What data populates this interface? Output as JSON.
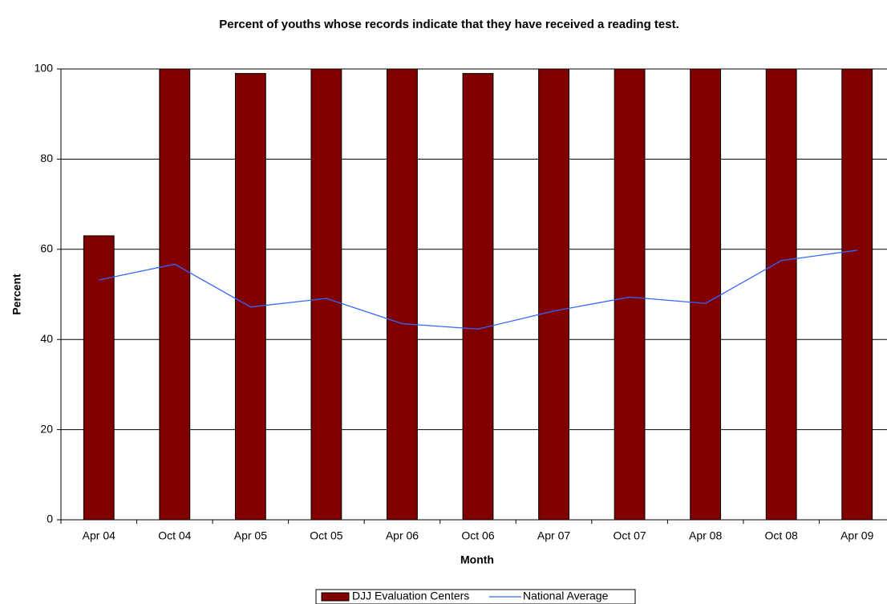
{
  "chart_data": {
    "type": "combo",
    "title": "Percent of youths whose records indicate that they have received a reading test.",
    "x_label": "Month",
    "y_label": "Percent",
    "categories": [
      "Apr 04",
      "Oct 04",
      "Apr 05",
      "Oct 05",
      "Apr 06",
      "Oct 06",
      "Apr 07",
      "Oct 07",
      "Apr 08",
      "Oct 08",
      "Apr 09"
    ],
    "series": [
      {
        "name": "DJJ Evaluation Centers",
        "type": "bar",
        "color": "#800000",
        "values": [
          63,
          100,
          99,
          100,
          100,
          99,
          100,
          100,
          100,
          100,
          100
        ]
      },
      {
        "name": "National Average",
        "type": "line",
        "color": "#3366ff",
        "values": [
          53.2,
          56.7,
          47.2,
          49.1,
          43.5,
          42.3,
          46.3,
          49.4,
          48.0,
          57.5,
          59.8
        ]
      }
    ],
    "ylim": [
      0,
      100
    ],
    "yticks": [
      0,
      20,
      40,
      60,
      80,
      100
    ],
    "grid": true,
    "legend": "bottom"
  }
}
